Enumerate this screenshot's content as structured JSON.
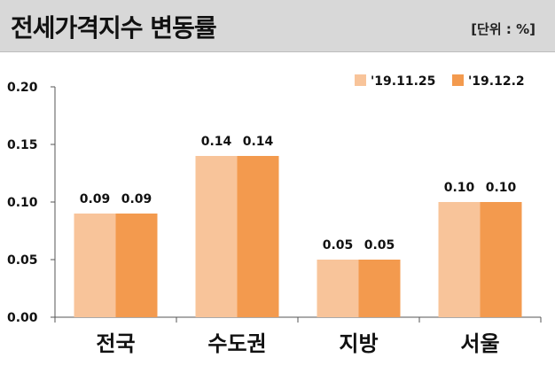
{
  "header": {
    "title": "전세가격지수 변동률",
    "unit": "[단위 : %]"
  },
  "colors": {
    "series_1": "#f8c49a",
    "series_2": "#f39a4e",
    "axis": "#555555",
    "header_bg": "#d8d8d8"
  },
  "chart_data": {
    "type": "bar",
    "title": "전세가격지수 변동률",
    "xlabel": "",
    "ylabel": "",
    "ylim": [
      0,
      0.2
    ],
    "yticks": [
      "0.00",
      "0.05",
      "0.10",
      "0.15",
      "0.20"
    ],
    "categories": [
      "전국",
      "수도권",
      "지방",
      "서울"
    ],
    "series": [
      {
        "name": "'19.11.25",
        "values": [
          0.09,
          0.14,
          0.05,
          0.1
        ],
        "labels": [
          "0.09",
          "0.14",
          "0.05",
          "0.10"
        ]
      },
      {
        "name": "'19.12.2",
        "values": [
          0.09,
          0.14,
          0.05,
          0.1
        ],
        "labels": [
          "0.09",
          "0.14",
          "0.05",
          "0.10"
        ]
      }
    ],
    "legend": "top-right",
    "grid": false
  }
}
